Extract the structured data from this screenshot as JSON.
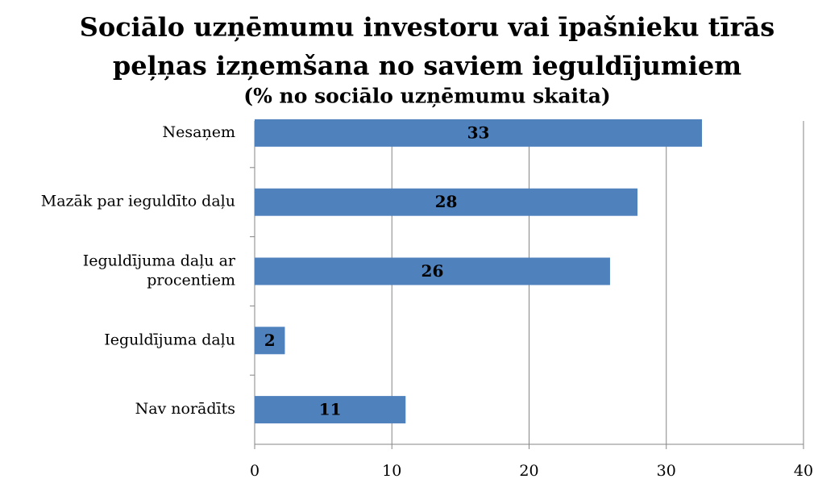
{
  "chart_data": {
    "type": "bar",
    "orientation": "horizontal",
    "title": [
      "Sociālo uzņēmumu investoru vai īpašnieku tīrās",
      "peļņas izņemšana no saviem ieguldījumiem"
    ],
    "subtitle": "(% no sociālo uzņēmumu skaita)",
    "categories": [
      "Nesaņem",
      "Mazāk par ieguldīto daļu",
      "Ieguldījuma daļu ar\nprocentiem",
      "Ieguldījuma daļu",
      "Nav norādīts"
    ],
    "values": [
      32.6,
      27.9,
      25.9,
      2.2,
      11
    ],
    "value_labels": [
      "33",
      "28",
      "26",
      "2",
      "11"
    ],
    "color": "#4f81bd",
    "xlim": [
      0,
      40
    ],
    "xticks": [
      0,
      10,
      20,
      30,
      40
    ],
    "grid": true
  }
}
